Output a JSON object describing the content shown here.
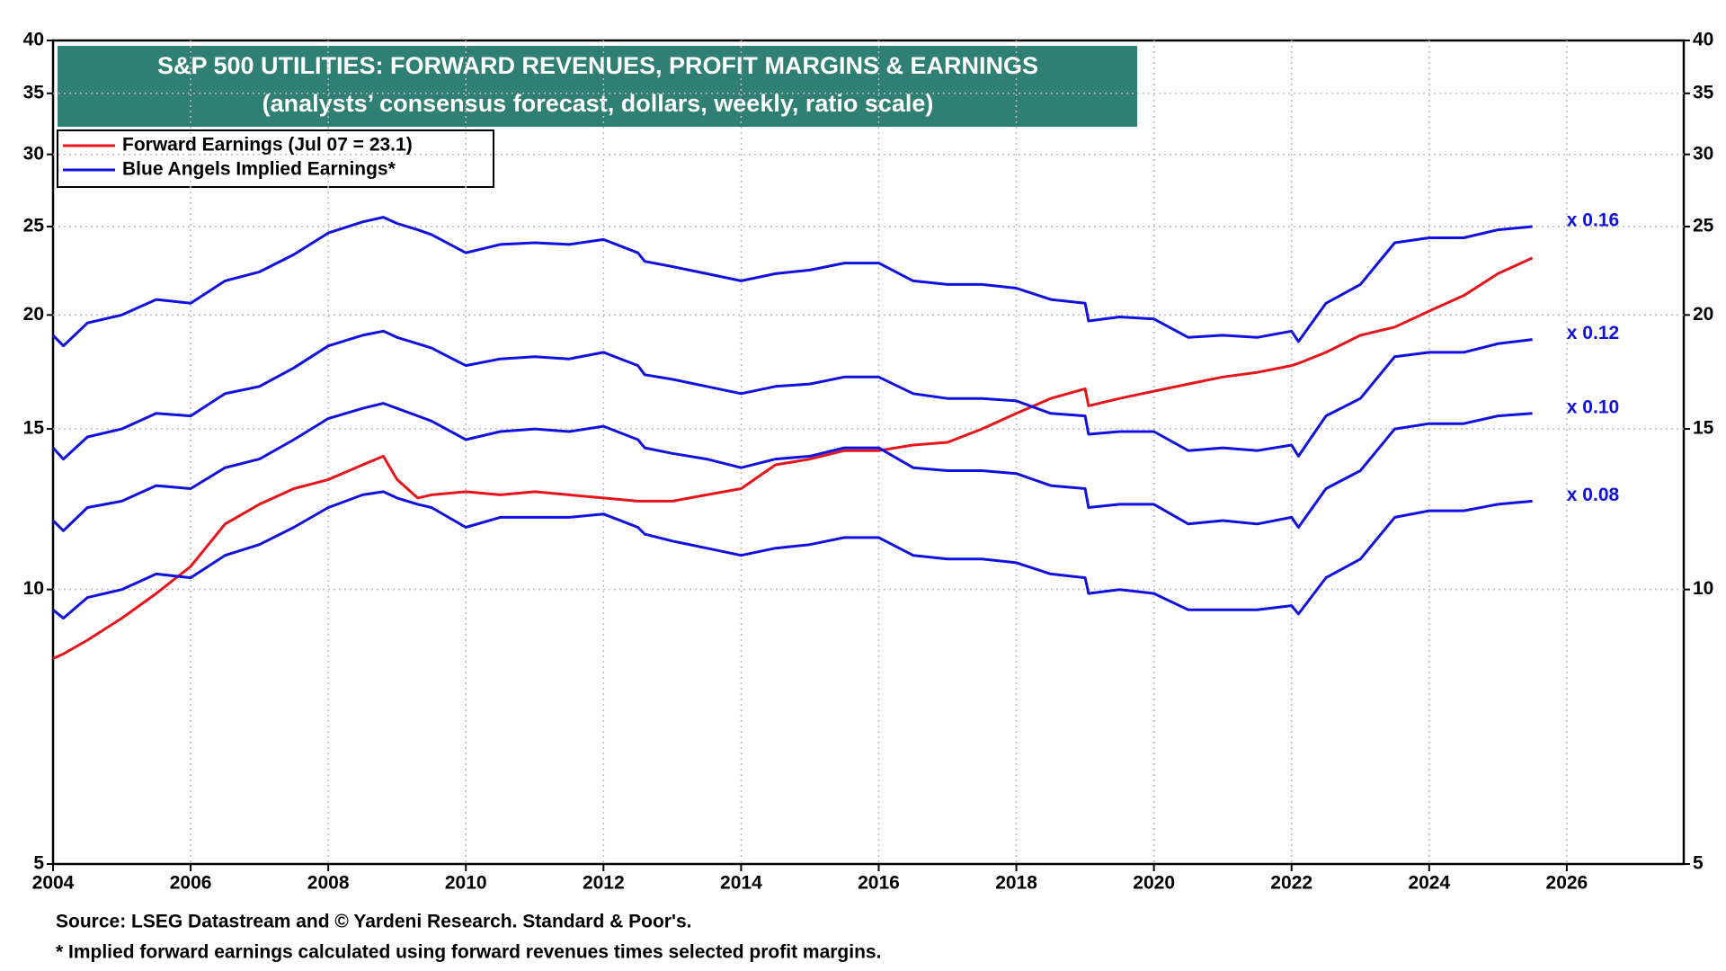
{
  "chart_data": {
    "type": "line",
    "title": "S&P 500 UTILITIES: FORWARD REVENUES, PROFIT MARGINS & EARNINGS",
    "subtitle": "(analysts’ consensus forecast, dollars, weekly, ratio scale)",
    "log_scale": true,
    "grid": true,
    "legend": "upper left",
    "xlim": [
      2004,
      2027.7
    ],
    "xticks": [
      2004,
      2006,
      2008,
      2010,
      2012,
      2014,
      2016,
      2018,
      2020,
      2022,
      2024,
      2026
    ],
    "ylim": [
      5,
      40
    ],
    "yticks": [
      5,
      10,
      15,
      20,
      25,
      30,
      35,
      40
    ],
    "x": [
      2004,
      2004.15,
      2004.5,
      2005,
      2005.5,
      2006,
      2006.5,
      2007,
      2007.5,
      2008,
      2008.5,
      2008.8,
      2009,
      2009.3,
      2009.5,
      2010,
      2010.5,
      2011,
      2011.5,
      2012,
      2012.5,
      2012.6,
      2013,
      2013.5,
      2014,
      2014.5,
      2015,
      2015.5,
      2016,
      2016.5,
      2017,
      2017.5,
      2018,
      2018.5,
      2019,
      2019.05,
      2019.5,
      2020,
      2020.5,
      2021,
      2021.5,
      2022,
      2022.1,
      2022.5,
      2023,
      2023.5,
      2024,
      2024.5,
      2025,
      2025.5
    ],
    "series": [
      {
        "name": "Forward Earnings (Jul 07 = 23.1)",
        "color": "#e8141b",
        "values": [
          8.4,
          8.5,
          8.8,
          9.3,
          9.9,
          10.6,
          11.8,
          12.4,
          12.9,
          13.2,
          13.7,
          14.0,
          13.2,
          12.6,
          12.7,
          12.8,
          12.7,
          12.8,
          12.7,
          12.6,
          12.5,
          12.5,
          12.5,
          12.7,
          12.9,
          13.7,
          13.9,
          14.2,
          14.2,
          14.4,
          14.5,
          15.0,
          15.6,
          16.2,
          16.6,
          15.9,
          16.2,
          16.5,
          16.8,
          17.1,
          17.3,
          17.6,
          17.7,
          18.2,
          19.0,
          19.4,
          20.2,
          21.0,
          22.2,
          23.1
        ]
      },
      {
        "name": "Blue Angels Implied Earnings*",
        "label": "x 0.16",
        "color": "#1010e0",
        "values": [
          19.0,
          18.5,
          19.6,
          20.0,
          20.8,
          20.6,
          21.8,
          22.3,
          23.3,
          24.6,
          25.3,
          25.6,
          25.2,
          24.8,
          24.5,
          23.4,
          23.9,
          24.0,
          23.9,
          24.2,
          23.4,
          22.9,
          22.6,
          22.2,
          21.8,
          22.2,
          22.4,
          22.8,
          22.8,
          21.8,
          21.6,
          21.6,
          21.4,
          20.8,
          20.6,
          19.7,
          19.9,
          19.8,
          18.9,
          19.0,
          18.9,
          19.2,
          18.7,
          20.6,
          21.6,
          24.0,
          24.3,
          24.3,
          24.8,
          25.0
        ]
      },
      {
        "label": "x 0.12",
        "color": "#1010e0",
        "values": [
          14.3,
          13.9,
          14.7,
          15.0,
          15.6,
          15.5,
          16.4,
          16.7,
          17.5,
          18.5,
          19.0,
          19.2,
          18.9,
          18.6,
          18.4,
          17.6,
          17.9,
          18.0,
          17.9,
          18.2,
          17.6,
          17.2,
          17.0,
          16.7,
          16.4,
          16.7,
          16.8,
          17.1,
          17.1,
          16.4,
          16.2,
          16.2,
          16.1,
          15.6,
          15.5,
          14.8,
          14.9,
          14.9,
          14.2,
          14.3,
          14.2,
          14.4,
          14.0,
          15.5,
          16.2,
          18.0,
          18.2,
          18.2,
          18.6,
          18.8
        ]
      },
      {
        "label": "x 0.10",
        "color": "#1010e0",
        "values": [
          11.9,
          11.6,
          12.3,
          12.5,
          13.0,
          12.9,
          13.6,
          13.9,
          14.6,
          15.4,
          15.8,
          16.0,
          15.8,
          15.5,
          15.3,
          14.6,
          14.9,
          15.0,
          14.9,
          15.1,
          14.6,
          14.3,
          14.1,
          13.9,
          13.6,
          13.9,
          14.0,
          14.3,
          14.3,
          13.6,
          13.5,
          13.5,
          13.4,
          13.0,
          12.9,
          12.3,
          12.4,
          12.4,
          11.8,
          11.9,
          11.8,
          12.0,
          11.7,
          12.9,
          13.5,
          15.0,
          15.2,
          15.2,
          15.5,
          15.6
        ]
      },
      {
        "label": "x 0.08",
        "color": "#1010e0",
        "values": [
          9.5,
          9.3,
          9.8,
          10.0,
          10.4,
          10.3,
          10.9,
          11.2,
          11.7,
          12.3,
          12.7,
          12.8,
          12.6,
          12.4,
          12.3,
          11.7,
          12.0,
          12.0,
          12.0,
          12.1,
          11.7,
          11.5,
          11.3,
          11.1,
          10.9,
          11.1,
          11.2,
          11.4,
          11.4,
          10.9,
          10.8,
          10.8,
          10.7,
          10.4,
          10.3,
          9.9,
          10.0,
          9.9,
          9.5,
          9.5,
          9.5,
          9.6,
          9.4,
          10.3,
          10.8,
          12.0,
          12.2,
          12.2,
          12.4,
          12.5
        ]
      }
    ],
    "notes": [
      "Source: LSEG Datastream and © Yardeni Research. Standard & Poor's.",
      "* Implied forward earnings calculated using forward revenues times selected profit margins."
    ]
  }
}
